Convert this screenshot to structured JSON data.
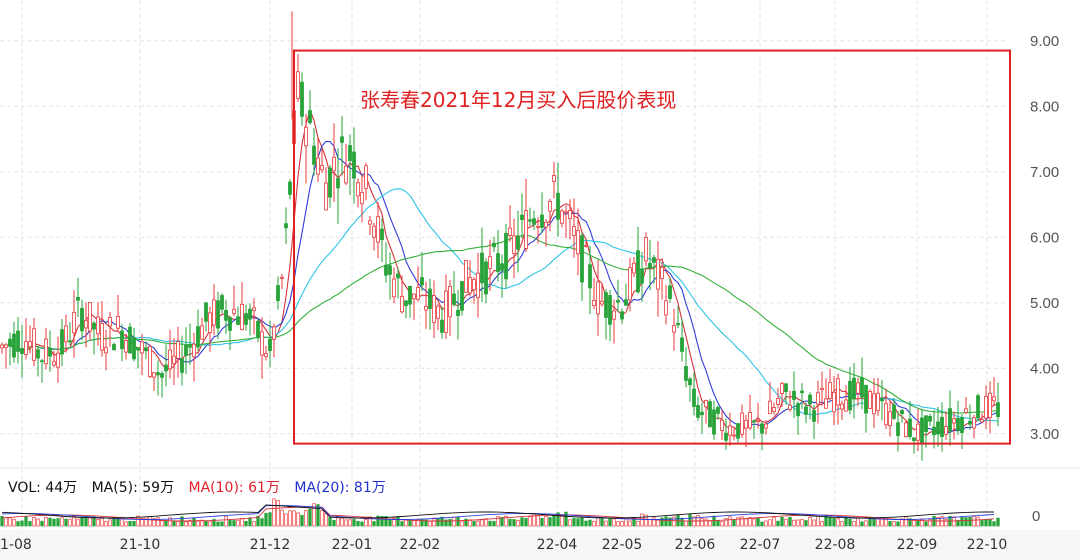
{
  "chart_data": {
    "type": "candlestick",
    "x_ticks": [
      "1-08",
      "21-10",
      "21-12",
      "22-01",
      "22-02",
      "22-04",
      "22-05",
      "22-06",
      "22-07",
      "22-08",
      "22-09",
      "22-10"
    ],
    "y_ticks": [
      "9.00",
      "8.00",
      "7.00",
      "6.00",
      "5.00",
      "4.00",
      "3.00"
    ],
    "y_range": [
      2.6,
      9.5
    ],
    "annotation": "张寿春2021年12月买入后股价表现",
    "highlight_range": {
      "from": "21-12",
      "to": "22-10",
      "low": 2.85,
      "high": 8.85
    },
    "price_path": [
      {
        "x": "1-08",
        "close": 4.5
      },
      {
        "close": 4.2
      },
      {
        "close": 4.3
      },
      {
        "close": 4.9
      },
      {
        "close": 4.5
      },
      {
        "close": 4.6
      },
      {
        "x": "21-10",
        "close": 4.3
      },
      {
        "close": 3.9
      },
      {
        "close": 4.2
      },
      {
        "close": 4.7
      },
      {
        "close": 4.9
      },
      {
        "close": 4.8
      },
      {
        "x": "21-12",
        "close": 4.2
      },
      {
        "close": 5.5
      },
      {
        "close": 8.2
      },
      {
        "close": 7.6
      },
      {
        "close": 6.8
      },
      {
        "close": 7.2
      },
      {
        "x": "22-01",
        "close": 7.3
      },
      {
        "close": 6.6
      },
      {
        "close": 5.6
      },
      {
        "close": 5.1
      },
      {
        "x": "22-02",
        "close": 5.1
      },
      {
        "close": 4.8
      },
      {
        "close": 5.3
      },
      {
        "close": 5.5
      },
      {
        "close": 5.8
      },
      {
        "close": 6.4
      },
      {
        "x": "22-04",
        "close": 6.6
      },
      {
        "close": 5.8
      },
      {
        "close": 5.0
      },
      {
        "x": "22-05",
        "close": 5.0
      },
      {
        "close": 5.7
      },
      {
        "close": 5.0
      },
      {
        "x": "22-06",
        "close": 3.4
      },
      {
        "close": 3.1
      },
      {
        "x": "22-07",
        "close": 3.1
      },
      {
        "close": 3.6
      },
      {
        "close": 3.4
      },
      {
        "x": "22-08",
        "close": 3.6
      },
      {
        "close": 3.6
      },
      {
        "close": 3.3
      },
      {
        "x": "22-09",
        "close": 3.0
      },
      {
        "close": 3.2
      },
      {
        "x": "22-10",
        "close": 3.4
      }
    ],
    "ma_lines": [
      {
        "color": "#d4333a",
        "period": 5
      },
      {
        "color": "#2f3ed8",
        "period": 10
      },
      {
        "color": "#2ec4e6",
        "period": 30
      },
      {
        "color": "#35b03a",
        "period": 60
      }
    ],
    "up_color": "#e83a3a",
    "down_color": "#27a33a",
    "volume": {
      "legend": [
        {
          "label": "VOL: 44万",
          "color": "#111111"
        },
        {
          "label": "MA(5): 59万",
          "color": "#111111"
        },
        {
          "label": "MA(10): 61万",
          "color": "#e0202a"
        },
        {
          "label": "MA(20): 81万",
          "color": "#2030d0"
        }
      ],
      "y_tick": "0"
    }
  }
}
